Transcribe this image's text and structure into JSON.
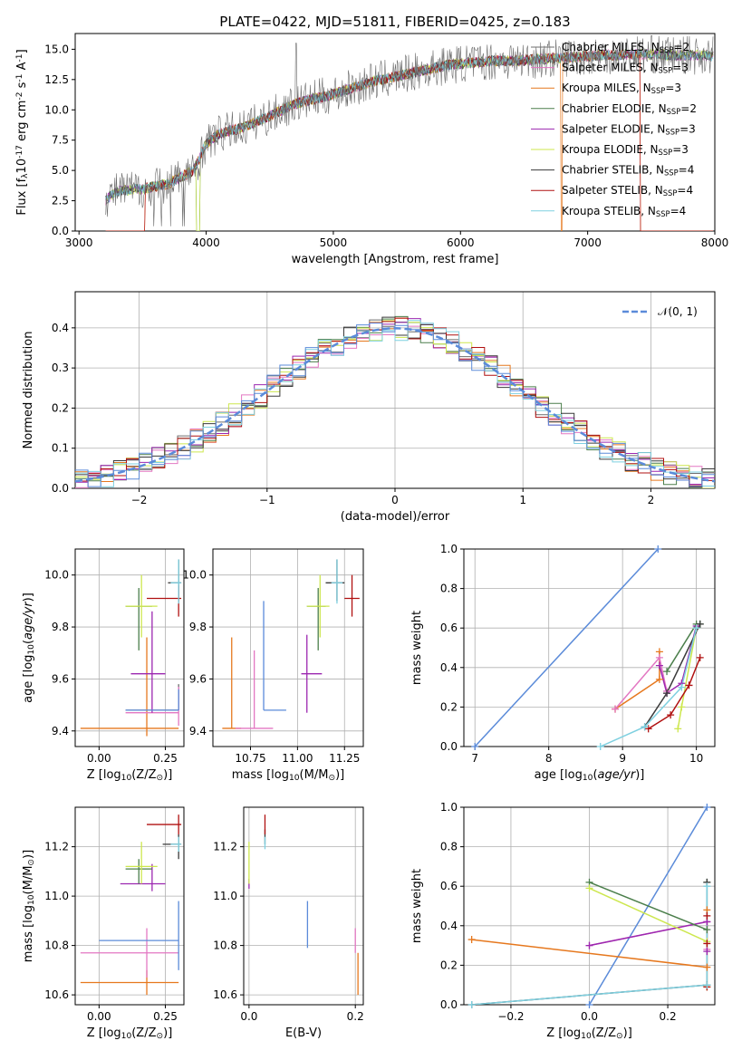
{
  "title": "PLATE=0422, MJD=51811, FIBERID=0425, z=0.183",
  "models": [
    {
      "name": "Chabrier MILES",
      "n": "2",
      "color": "#6c6c6c"
    },
    {
      "name": "Salpeter MILES",
      "n": "3",
      "color": "#e377c2"
    },
    {
      "name": "Kroupa MILES",
      "n": "3",
      "color": "#e6781e"
    },
    {
      "name": "Chabrier ELODIE",
      "n": "2",
      "color": "#4b7f4b"
    },
    {
      "name": "Salpeter ELODIE",
      "n": "3",
      "color": "#9c27b0"
    },
    {
      "name": "Kroupa ELODIE",
      "n": "3",
      "color": "#cde74e"
    },
    {
      "name": "Chabrier STELIB",
      "n": "4",
      "color": "#3a3a3a"
    },
    {
      "name": "Salpeter STELIB",
      "n": "4",
      "color": "#b01010"
    },
    {
      "name": "Kroupa STELIB",
      "n": "4",
      "color": "#7ed0e0"
    }
  ],
  "chart_data": [
    {
      "id": "spectrum",
      "type": "line",
      "xlabel": "wavelength [Angstrom, rest frame]",
      "ylabel": "Flux [f$_\\lambda$10$^{-17}$ erg cm$^{-2}$ s$^{-1}$ A$^{-1}$]",
      "xlim": [
        2970,
        8000
      ],
      "ylim": [
        0,
        16.3
      ],
      "xticks": [
        "3000",
        "4000",
        "5000",
        "6000",
        "7000",
        "8000"
      ],
      "yticks": [
        "0.0",
        "2.5",
        "5.0",
        "7.5",
        "10.0",
        "12.5",
        "15.0"
      ],
      "legend": "top-right",
      "continuum": {
        "x": [
          3200,
          3300,
          3500,
          3700,
          3900,
          4000,
          4100,
          4300,
          4500,
          4700,
          5000,
          5300,
          5600,
          5900,
          6200,
          6500,
          6800,
          7100,
          7400,
          7700,
          8000
        ],
        "y": [
          2.5,
          3.3,
          3.5,
          3.9,
          5.0,
          7.2,
          8.0,
          8.6,
          9.5,
          10.5,
          11.3,
          12.3,
          13.0,
          13.7,
          14.0,
          14.1,
          14.3,
          14.5,
          14.6,
          14.5,
          14.5
        ]
      }
    },
    {
      "id": "residuals",
      "type": "line",
      "xlabel": "(data-model)/error",
      "ylabel": "Normed distribution",
      "xlim": [
        -2.5,
        2.5
      ],
      "ylim": [
        0,
        0.49
      ],
      "xticks": [
        "−2",
        "−1",
        "0",
        "1",
        "2"
      ],
      "yticks": [
        "0.0",
        "0.1",
        "0.2",
        "0.3",
        "0.4"
      ],
      "legend": "top-right",
      "reference_label": "𝒩(0, 1)",
      "reference_color": "#5b8bd9"
    },
    {
      "id": "age-metallicity",
      "type": "scatter",
      "xlabel": "Z [log$_{10}$(Z/Z$_\\odot$)]",
      "ylabel": "age  [log$_{10}$($age/yr$)]",
      "xlim": [
        -0.09,
        0.32
      ],
      "ylim": [
        9.34,
        10.1
      ],
      "xticks": [
        "0.00",
        "0.25"
      ],
      "yticks": [
        "9.4",
        "9.6",
        "9.8",
        "10.0"
      ],
      "points": [
        {
          "model": 0,
          "x": 0.3,
          "y": 9.48,
          "xerr": [
            0.2,
            0.0
          ],
          "yerr": [
            0.0,
            0.1
          ]
        },
        {
          "model": 2,
          "x": 0.18,
          "y": 9.41,
          "xerr": [
            0.25,
            0.12
          ],
          "yerr": [
            0.03,
            0.35
          ]
        },
        {
          "model": 1,
          "x": 0.3,
          "y": 9.47,
          "xerr": [
            0.2,
            0.0
          ],
          "yerr": [
            0.05,
            0.1
          ]
        },
        {
          "model": 3,
          "x": 0.15,
          "y": 9.88,
          "xerr": [
            0.05,
            0.05
          ],
          "yerr": [
            0.17,
            0.07
          ]
        },
        {
          "model": 4,
          "x": 0.2,
          "y": 9.62,
          "xerr": [
            0.08,
            0.05
          ],
          "yerr": [
            0.15,
            0.24
          ]
        },
        {
          "model": 5,
          "x": 0.16,
          "y": 9.88,
          "xerr": [
            0.06,
            0.06
          ],
          "yerr": [
            0.12,
            0.12
          ]
        },
        {
          "model": 6,
          "x": 0.3,
          "y": 9.97,
          "xerr": [
            0.04,
            0.01
          ],
          "yerr": [
            0.07,
            0.09
          ]
        },
        {
          "model": 7,
          "x": 0.3,
          "y": 9.91,
          "xerr": [
            0.12,
            0.01
          ],
          "yerr": [
            0.07,
            0.05
          ]
        },
        {
          "model": 8,
          "x": 0.3,
          "y": 9.97,
          "xerr": [
            0.03,
            0.01
          ],
          "yerr": [
            0.08,
            0.09
          ]
        },
        {
          "model": 0,
          "x": 0.3,
          "y": 9.48,
          "xerr": [
            0.2,
            0.0
          ],
          "yerr": [
            0.0,
            0.08
          ],
          "color": "#5b8bd9"
        }
      ]
    },
    {
      "id": "age-mass",
      "type": "scatter",
      "xlabel": "mass [log$_{10}$(M/M$_\\odot$)]",
      "ylabel": "",
      "xlim": [
        10.55,
        11.35
      ],
      "ylim": [
        9.34,
        10.1
      ],
      "xticks": [
        "10.75",
        "11.00",
        "11.25"
      ],
      "yticks": [
        "9.4",
        "9.6",
        "9.8",
        "10.0"
      ],
      "points": [
        {
          "model": 2,
          "x": 10.65,
          "y": 9.41,
          "xerr": [
            0.05,
            0.05
          ],
          "yerr": [
            0.0,
            0.35
          ],
          "color": "#e6781e"
        },
        {
          "model": 1,
          "x": 10.77,
          "y": 9.41,
          "xerr": [
            0.1,
            0.1
          ],
          "yerr": [
            0.0,
            0.3
          ]
        },
        {
          "model": 0,
          "x": 10.82,
          "y": 9.48,
          "xerr": [
            0.0,
            0.12
          ],
          "yerr": [
            0.0,
            0.42
          ],
          "color": "#5b8bd9"
        },
        {
          "model": 4,
          "x": 11.05,
          "y": 9.62,
          "xerr": [
            0.03,
            0.08
          ],
          "yerr": [
            0.15,
            0.15
          ]
        },
        {
          "model": 3,
          "x": 11.11,
          "y": 9.88,
          "xerr": [
            0.06,
            0.04
          ],
          "yerr": [
            0.17,
            0.07
          ]
        },
        {
          "model": 5,
          "x": 11.12,
          "y": 9.88,
          "xerr": [
            0.07,
            0.05
          ],
          "yerr": [
            0.12,
            0.12
          ]
        },
        {
          "model": 6,
          "x": 11.21,
          "y": 9.97,
          "xerr": [
            0.06,
            0.04
          ],
          "yerr": [
            0.07,
            0.09
          ]
        },
        {
          "model": 8,
          "x": 11.21,
          "y": 9.97,
          "xerr": [
            0.03,
            0.03
          ],
          "yerr": [
            0.08,
            0.09
          ]
        },
        {
          "model": 7,
          "x": 11.29,
          "y": 9.91,
          "xerr": [
            0.04,
            0.04
          ],
          "yerr": [
            0.07,
            0.09
          ]
        }
      ]
    },
    {
      "id": "massweight-age",
      "type": "line",
      "xlabel": "age  [log$_{10}$($age/yr$)]",
      "ylabel": "mass weight",
      "xlim": [
        6.85,
        10.25
      ],
      "ylim": [
        0,
        1.0
      ],
      "xticks": [
        "7",
        "8",
        "9",
        "10"
      ],
      "yticks": [
        "0.0",
        "0.2",
        "0.4",
        "0.6",
        "0.8",
        "1.0"
      ],
      "series": [
        {
          "model": 0,
          "x": [
            7.0,
            9.48
          ],
          "y": [
            0.0,
            1.0
          ],
          "color": "#5b8bd9"
        },
        {
          "model": 2,
          "x": [
            8.9,
            9.5,
            9.5
          ],
          "y": [
            0.19,
            0.34,
            0.48
          ]
        },
        {
          "model": 1,
          "x": [
            8.9,
            9.5,
            9.6
          ],
          "y": [
            0.19,
            0.45,
            0.28
          ]
        },
        {
          "model": 4,
          "x": [
            9.5,
            9.6,
            9.8,
            10.0
          ],
          "y": [
            0.41,
            0.27,
            0.32,
            0.61
          ]
        },
        {
          "model": 3,
          "x": [
            9.6,
            10.0,
            10.05
          ],
          "y": [
            0.38,
            0.62,
            0.62
          ]
        },
        {
          "model": 5,
          "x": [
            9.75,
            9.8,
            10.0
          ],
          "y": [
            0.09,
            0.2,
            0.6
          ]
        },
        {
          "model": 6,
          "x": [
            9.3,
            9.6,
            10.05
          ],
          "y": [
            0.1,
            0.27,
            0.62
          ]
        },
        {
          "model": 7,
          "x": [
            9.35,
            9.65,
            9.9,
            10.05
          ],
          "y": [
            0.09,
            0.16,
            0.31,
            0.45
          ]
        },
        {
          "model": 8,
          "x": [
            8.7,
            9.3,
            9.8,
            10.0
          ],
          "y": [
            0.0,
            0.1,
            0.3,
            0.6
          ]
        }
      ]
    },
    {
      "id": "mass-metallicity",
      "type": "scatter",
      "xlabel": "Z [log$_{10}$(Z/Z$_\\odot$)]",
      "ylabel": "mass [log$_{10}$(M/M$_\\odot$)]",
      "xlim": [
        -0.09,
        0.32
      ],
      "ylim": [
        10.56,
        11.36
      ],
      "xticks": [
        "0.00",
        "0.25"
      ],
      "yticks": [
        "10.6",
        "10.8",
        "11.0",
        "11.2"
      ],
      "points": [
        {
          "model": 2,
          "x": 0.18,
          "y": 10.65,
          "xerr": [
            0.25,
            0.12
          ],
          "yerr": [
            0.05,
            0.05
          ],
          "color": "#e6781e"
        },
        {
          "model": 1,
          "x": 0.18,
          "y": 10.77,
          "xerr": [
            0.25,
            0.12
          ],
          "yerr": [
            0.1,
            0.1
          ]
        },
        {
          "model": 0,
          "x": 0.3,
          "y": 10.82,
          "xerr": [
            0.3,
            0.0
          ],
          "yerr": [
            0.12,
            0.16
          ],
          "color": "#5b8bd9"
        },
        {
          "model": 4,
          "x": 0.2,
          "y": 11.05,
          "xerr": [
            0.12,
            0.05
          ],
          "yerr": [
            0.03,
            0.08
          ]
        },
        {
          "model": 3,
          "x": 0.15,
          "y": 11.11,
          "xerr": [
            0.05,
            0.05
          ],
          "yerr": [
            0.06,
            0.04
          ]
        },
        {
          "model": 5,
          "x": 0.16,
          "y": 11.12,
          "xerr": [
            0.06,
            0.06
          ],
          "yerr": [
            0.07,
            0.1
          ]
        },
        {
          "model": 6,
          "x": 0.3,
          "y": 11.21,
          "xerr": [
            0.06,
            0.01
          ],
          "yerr": [
            0.06,
            0.04
          ]
        },
        {
          "model": 8,
          "x": 0.3,
          "y": 11.21,
          "xerr": [
            0.03,
            0.01
          ],
          "yerr": [
            0.03,
            0.03
          ]
        },
        {
          "model": 7,
          "x": 0.3,
          "y": 11.29,
          "xerr": [
            0.12,
            0.01
          ],
          "yerr": [
            0.04,
            0.04
          ]
        }
      ]
    },
    {
      "id": "mass-reddening",
      "type": "scatter",
      "xlabel": "E(B-V)",
      "ylabel": "",
      "xlim": [
        -0.01,
        0.215
      ],
      "ylim": [
        10.56,
        11.36
      ],
      "xticks": [
        "0.0",
        "0.2"
      ],
      "yticks": [
        "10.6",
        "10.8",
        "11.0",
        "11.2"
      ],
      "points": [
        {
          "model": 2,
          "x": 0.205,
          "y": 10.65,
          "xerr": [
            0.0,
            0.0
          ],
          "yerr": [
            0.05,
            0.12
          ],
          "color": "#e6781e"
        },
        {
          "model": 1,
          "x": 0.2,
          "y": 10.77,
          "xerr": [
            0.0,
            0.0
          ],
          "yerr": [
            0.0,
            0.1
          ]
        },
        {
          "model": 0,
          "x": 0.11,
          "y": 10.82,
          "xerr": [
            0.0,
            0.0
          ],
          "yerr": [
            0.03,
            0.16
          ],
          "color": "#5b8bd9"
        },
        {
          "model": 4,
          "x": 0.0,
          "y": 11.05,
          "xerr": [
            0.0,
            0.0
          ],
          "yerr": [
            0.02,
            0.02
          ]
        },
        {
          "model": 5,
          "x": 0.0,
          "y": 11.12,
          "xerr": [
            0.0,
            0.0
          ],
          "yerr": [
            0.07,
            0.1
          ]
        },
        {
          "model": 6,
          "x": 0.03,
          "y": 11.21,
          "xerr": [
            0.0,
            0.0
          ],
          "yerr": [
            0.0,
            0.06
          ]
        },
        {
          "model": 8,
          "x": 0.03,
          "y": 11.21,
          "xerr": [
            0.0,
            0.0
          ],
          "yerr": [
            0.02,
            0.03
          ]
        },
        {
          "model": 7,
          "x": 0.03,
          "y": 11.29,
          "xerr": [
            0.0,
            0.0
          ],
          "yerr": [
            0.04,
            0.04
          ]
        }
      ]
    },
    {
      "id": "massweight-metallicity",
      "type": "line",
      "xlabel": "Z [log$_{10}$(Z/Z$_\\odot$)]",
      "ylabel": "mass weight",
      "xlim": [
        -0.32,
        0.32
      ],
      "ylim": [
        0,
        1.0
      ],
      "xticks": [
        "−0.2",
        "0.0",
        "0.2"
      ],
      "yticks": [
        "0.0",
        "0.2",
        "0.4",
        "0.6",
        "0.8",
        "1.0"
      ],
      "series": [
        {
          "model": 0,
          "x": [
            0.0,
            0.3
          ],
          "y": [
            0.0,
            1.0
          ],
          "color": "#5b8bd9"
        },
        {
          "model": 2,
          "x": [
            -0.3,
            0.3,
            0.3
          ],
          "y": [
            0.33,
            0.19,
            0.48
          ]
        },
        {
          "model": 1,
          "x": [
            0.0,
            0.3,
            0.3
          ],
          "y": [
            0.3,
            0.42,
            0.28
          ]
        },
        {
          "model": 4,
          "x": [
            0.0,
            0.3,
            0.3
          ],
          "y": [
            0.3,
            0.42,
            0.27
          ]
        },
        {
          "model": 3,
          "x": [
            0.0,
            0.3,
            0.3
          ],
          "y": [
            0.62,
            0.38,
            0.62
          ]
        },
        {
          "model": 5,
          "x": [
            0.0,
            0.3,
            0.3
          ],
          "y": [
            0.59,
            0.32,
            0.09
          ]
        },
        {
          "model": 6,
          "x": [
            -0.3,
            0.3,
            0.3
          ],
          "y": [
            0.0,
            0.1,
            0.62
          ]
        },
        {
          "model": 7,
          "x": [
            0.3,
            0.3,
            0.3
          ],
          "y": [
            0.09,
            0.31,
            0.45
          ]
        },
        {
          "model": 8,
          "x": [
            -0.3,
            0.3,
            0.3
          ],
          "y": [
            0.0,
            0.1,
            0.6
          ]
        }
      ]
    }
  ]
}
